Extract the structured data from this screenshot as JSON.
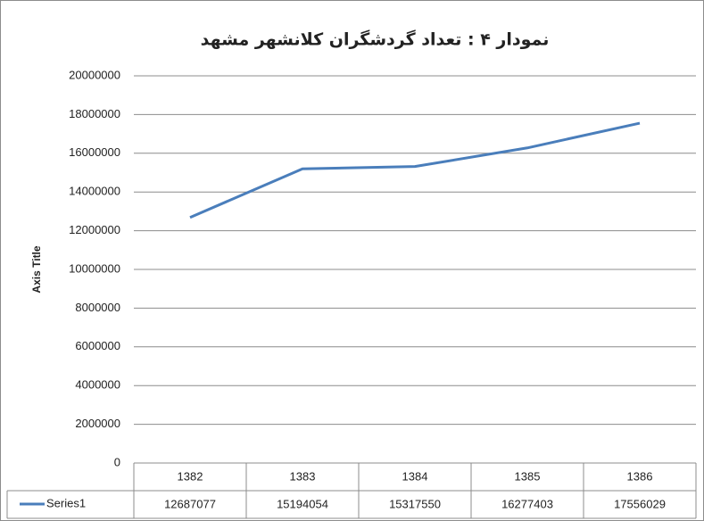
{
  "chart_data": {
    "type": "line",
    "title": "نمودار ۴ : تعداد گردشگران کلانشهر مشهد",
    "y_axis_label": "Axis Title",
    "categories": [
      "1382",
      "1383",
      "1384",
      "1385",
      "1386"
    ],
    "series": [
      {
        "name": "Series1",
        "color": "#4a7ebb",
        "values": [
          12687077,
          15194054,
          15317550,
          16277403,
          17556029
        ]
      }
    ],
    "ylim": [
      0,
      20000000
    ],
    "yticks": [
      0,
      2000000,
      4000000,
      6000000,
      8000000,
      10000000,
      12000000,
      14000000,
      16000000,
      18000000,
      20000000
    ],
    "grid": true
  }
}
